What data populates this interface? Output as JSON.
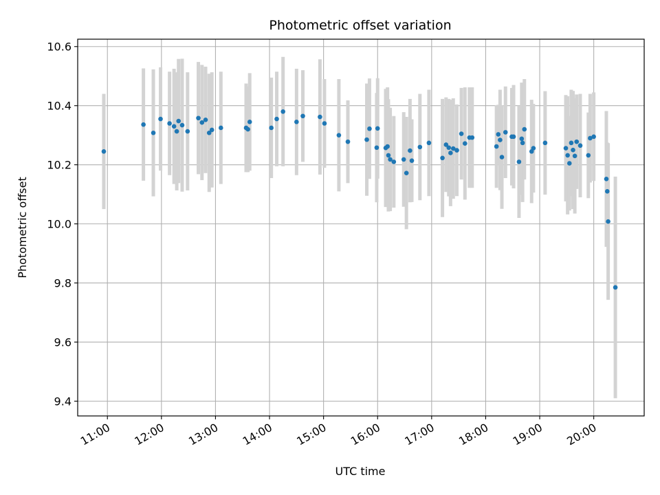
{
  "chart_data": {
    "type": "scatter",
    "title": "Photometric offset variation",
    "xlabel": "UTC time",
    "ylabel": "Photometric offset",
    "xlim": [
      "10:27",
      "20:56"
    ],
    "ylim": [
      9.35,
      10.625
    ],
    "grid": true,
    "colors": {
      "point": "#1f77b4",
      "errorbar": "#d3d3d3",
      "grid": "#b0b0b0"
    },
    "x_ticks": [
      "11:00",
      "12:00",
      "13:00",
      "14:00",
      "15:00",
      "16:00",
      "17:00",
      "18:00",
      "19:00",
      "20:00"
    ],
    "y_ticks": [
      "9.4",
      "9.6",
      "9.8",
      "10.0",
      "10.2",
      "10.4",
      "10.6"
    ],
    "series": [
      {
        "x": [
          "10:56",
          "11:40",
          "11:51",
          "11:59",
          "12:09",
          "12:14",
          "12:17",
          "12:19",
          "12:23",
          "12:29",
          "12:41",
          "12:45",
          "12:49",
          "12:53",
          "12:56",
          "13:06",
          "13:34",
          "13:36",
          "13:38",
          "14:02",
          "14:08",
          "14:15",
          "14:30",
          "14:37",
          "14:56",
          "15:01",
          "15:17",
          "15:27",
          "15:48",
          "15:51",
          "15:59",
          "16:00",
          "16:09",
          "16:11",
          "16:12",
          "16:14",
          "16:18",
          "16:29",
          "16:32",
          "16:36",
          "16:38",
          "16:47",
          "16:57",
          "17:12",
          "17:16",
          "17:19",
          "17:21",
          "17:24",
          "17:28",
          "17:33",
          "17:37",
          "17:42",
          "17:45",
          "18:12",
          "18:14",
          "18:16",
          "18:18",
          "18:22",
          "18:29",
          "18:31",
          "18:37",
          "18:40",
          "18:41",
          "18:43",
          "18:51",
          "18:53",
          "19:06",
          "19:29",
          "19:31",
          "19:33",
          "19:35",
          "19:37",
          "19:39",
          "19:41",
          "19:45",
          "19:54",
          "19:56",
          "20:00",
          "20:14",
          "20:15",
          "20:16",
          "20:24"
        ],
        "y": [
          10.245,
          10.336,
          10.308,
          10.355,
          10.34,
          10.33,
          10.313,
          10.348,
          10.334,
          10.313,
          10.358,
          10.343,
          10.352,
          10.308,
          10.318,
          10.325,
          10.325,
          10.32,
          10.345,
          10.325,
          10.355,
          10.38,
          10.345,
          10.365,
          10.362,
          10.34,
          10.3,
          10.278,
          10.285,
          10.322,
          10.258,
          10.323,
          10.257,
          10.262,
          10.232,
          10.218,
          10.21,
          10.218,
          10.172,
          10.248,
          10.214,
          10.26,
          10.274,
          10.223,
          10.268,
          10.258,
          10.24,
          10.255,
          10.249,
          10.305,
          10.272,
          10.292,
          10.292,
          10.262,
          10.303,
          10.284,
          10.226,
          10.31,
          10.295,
          10.295,
          10.21,
          10.288,
          10.274,
          10.32,
          10.245,
          10.256,
          10.274,
          10.256,
          10.232,
          10.205,
          10.274,
          10.25,
          10.23,
          10.278,
          10.265,
          10.232,
          10.29,
          10.295,
          10.152,
          10.11,
          10.008,
          9.785
        ],
        "err": [
          0.195,
          0.19,
          0.215,
          0.175,
          0.175,
          0.195,
          0.2,
          0.21,
          0.225,
          0.2,
          0.19,
          0.195,
          0.18,
          0.2,
          0.195,
          0.19,
          0.15,
          0.145,
          0.165,
          0.17,
          0.16,
          0.185,
          0.18,
          0.155,
          0.195,
          0.15,
          0.19,
          0.14,
          0.19,
          0.17,
          0.185,
          0.17,
          0.2,
          0.2,
          0.19,
          0.175,
          0.155,
          0.16,
          0.19,
          0.175,
          0.14,
          0.18,
          0.18,
          0.2,
          0.16,
          0.165,
          0.18,
          0.17,
          0.155,
          0.155,
          0.19,
          0.17,
          0.17,
          0.14,
          0.1,
          0.17,
          0.175,
          0.155,
          0.165,
          0.175,
          0.19,
          0.19,
          0.2,
          0.17,
          0.175,
          0.15,
          0.175,
          0.18,
          0.2,
          0.16,
          0.18,
          0.2,
          0.195,
          0.16,
          0.175,
          0.145,
          0.15,
          0.15,
          0.23,
          0.165,
          0.265,
          0.375
        ]
      }
    ]
  }
}
